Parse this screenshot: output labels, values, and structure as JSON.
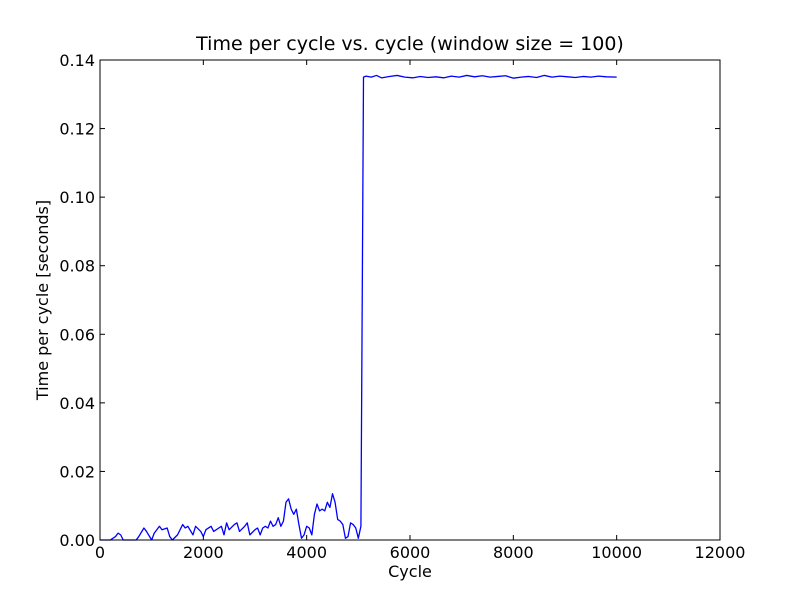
{
  "chart_data": {
    "type": "line",
    "title": "Time per cycle vs. cycle (window size = 100)",
    "xlabel": "Cycle",
    "ylabel": "Time per cycle [seconds]",
    "xlim": [
      0,
      12000
    ],
    "ylim": [
      0.0,
      0.14
    ],
    "xticks": [
      0,
      2000,
      4000,
      6000,
      8000,
      10000,
      12000
    ],
    "xtick_labels": [
      "0",
      "2000",
      "4000",
      "6000",
      "8000",
      "10000",
      "12000"
    ],
    "yticks": [
      0.0,
      0.02,
      0.04,
      0.06,
      0.08,
      0.1,
      0.12,
      0.14
    ],
    "ytick_labels": [
      "0.00",
      "0.02",
      "0.04",
      "0.06",
      "0.08",
      "0.10",
      "0.12",
      "0.14"
    ],
    "grid": false,
    "line_color": "#0000ff",
    "series": [
      {
        "x": [
          0,
          200,
          300,
          350,
          400,
          450,
          700,
          750,
          850,
          900,
          1000,
          1050,
          1150,
          1200,
          1300,
          1350,
          1400,
          1500,
          1600,
          1650,
          1700,
          1800,
          1850,
          1950,
          2000,
          2050,
          2150,
          2200,
          2300,
          2350,
          2400,
          2450,
          2500,
          2600,
          2650,
          2700,
          2800,
          2850,
          2900,
          3000,
          3050,
          3100,
          3150,
          3200,
          3250,
          3300,
          3350,
          3400,
          3450,
          3500,
          3550,
          3600,
          3650,
          3700,
          3750,
          3800,
          3850,
          3900,
          3950,
          4000,
          4050,
          4100,
          4150,
          4200,
          4250,
          4300,
          4350,
          4400,
          4450,
          4500,
          4550,
          4600,
          4650,
          4700,
          4750,
          4800,
          4850,
          4900,
          4950,
          5000,
          5050,
          5100,
          5150,
          5250,
          5350,
          5450,
          5600,
          5750,
          5900,
          6050,
          6200,
          6350,
          6500,
          6650,
          6800,
          6950,
          7100,
          7250,
          7400,
          7550,
          7700,
          7850,
          8000,
          8150,
          8300,
          8450,
          8600,
          8750,
          8900,
          9050,
          9200,
          9350,
          9500,
          9650,
          9800,
          10000
        ],
        "y": [
          0.0,
          0.0,
          0.001,
          0.002,
          0.0015,
          0.0,
          0.0,
          0.001,
          0.0035,
          0.0025,
          0.0,
          0.002,
          0.004,
          0.003,
          0.0035,
          0.001,
          0.0,
          0.0015,
          0.0045,
          0.0035,
          0.004,
          0.0015,
          0.004,
          0.0025,
          0.001,
          0.003,
          0.004,
          0.0025,
          0.0035,
          0.004,
          0.0015,
          0.005,
          0.003,
          0.0045,
          0.005,
          0.0025,
          0.004,
          0.005,
          0.0015,
          0.003,
          0.0035,
          0.0015,
          0.0035,
          0.004,
          0.0035,
          0.0055,
          0.004,
          0.0045,
          0.0065,
          0.004,
          0.0055,
          0.011,
          0.012,
          0.009,
          0.0075,
          0.009,
          0.0045,
          0.0005,
          0.0015,
          0.004,
          0.0035,
          0.0015,
          0.0075,
          0.0105,
          0.0085,
          0.009,
          0.0085,
          0.011,
          0.0095,
          0.0135,
          0.011,
          0.006,
          0.0055,
          0.0045,
          0.0005,
          0.001,
          0.005,
          0.0045,
          0.0035,
          0.0005,
          0.004,
          0.135,
          0.1353,
          0.135,
          0.1355,
          0.1348,
          0.1352,
          0.1355,
          0.135,
          0.1348,
          0.1352,
          0.1349,
          0.1351,
          0.1348,
          0.1353,
          0.135,
          0.1355,
          0.1351,
          0.1354,
          0.135,
          0.1352,
          0.1354,
          0.1347,
          0.135,
          0.1352,
          0.1349,
          0.1355,
          0.135,
          0.1353,
          0.1351,
          0.1349,
          0.1352,
          0.135,
          0.1353,
          0.1351,
          0.135
        ]
      }
    ]
  }
}
